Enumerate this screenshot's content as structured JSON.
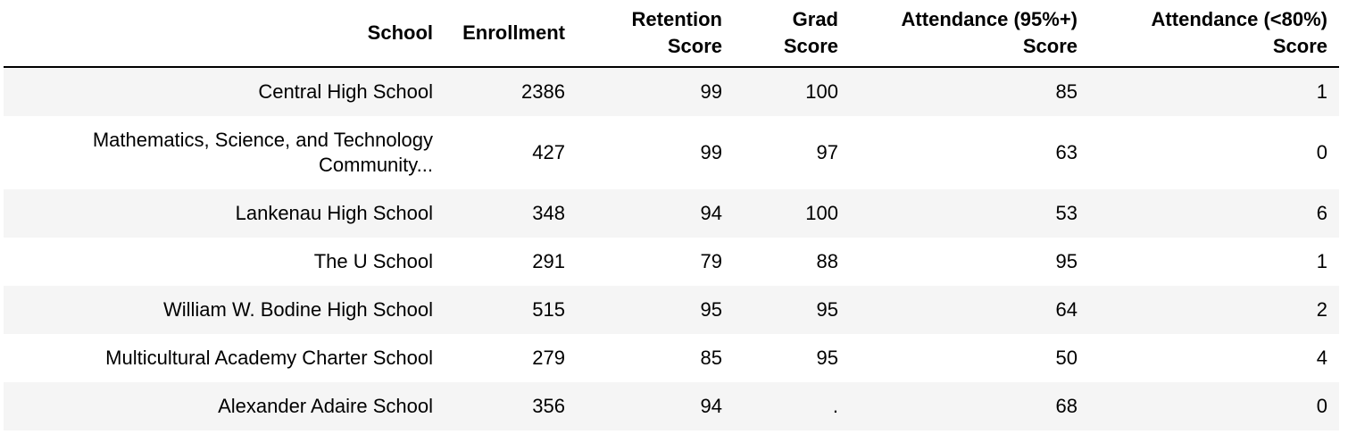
{
  "table": {
    "headers": [
      {
        "line1": "School",
        "line2": ""
      },
      {
        "line1": "Enrollment",
        "line2": ""
      },
      {
        "line1": "Retention",
        "line2": "Score"
      },
      {
        "line1": "Grad",
        "line2": "Score"
      },
      {
        "line1": "Attendance (95%+)",
        "line2": "Score"
      },
      {
        "line1": "Attendance (<80%)",
        "line2": "Score"
      }
    ],
    "rows": [
      {
        "school_line1": "Central High School",
        "school_line2": "",
        "enrollment": "2386",
        "retention": "99",
        "grad": "100",
        "att95": "85",
        "att80": "1"
      },
      {
        "school_line1": "Mathematics, Science, and Technology",
        "school_line2": "Community...",
        "enrollment": "427",
        "retention": "99",
        "grad": "97",
        "att95": "63",
        "att80": "0"
      },
      {
        "school_line1": "Lankenau High School",
        "school_line2": "",
        "enrollment": "348",
        "retention": "94",
        "grad": "100",
        "att95": "53",
        "att80": "6"
      },
      {
        "school_line1": "The U School",
        "school_line2": "",
        "enrollment": "291",
        "retention": "79",
        "grad": "88",
        "att95": "95",
        "att80": "1"
      },
      {
        "school_line1": "William W. Bodine High School",
        "school_line2": "",
        "enrollment": "515",
        "retention": "95",
        "grad": "95",
        "att95": "64",
        "att80": "2"
      },
      {
        "school_line1": "Multicultural Academy Charter School",
        "school_line2": "",
        "enrollment": "279",
        "retention": "85",
        "grad": "95",
        "att95": "50",
        "att80": "4"
      },
      {
        "school_line1": "Alexander Adaire School",
        "school_line2": "",
        "enrollment": "356",
        "retention": "94",
        "grad": ".",
        "att95": "68",
        "att80": "0"
      }
    ]
  }
}
